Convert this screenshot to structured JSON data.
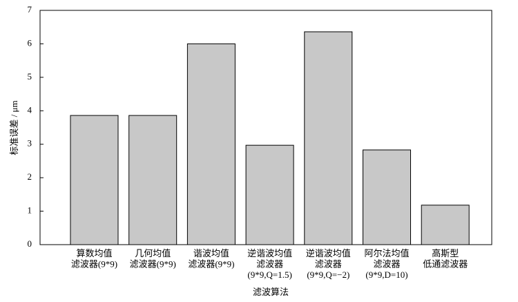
{
  "chart_data": {
    "type": "bar",
    "y_label": "标准误差 / μm",
    "x_label": "滤波算法",
    "categories": [
      [
        "算数均值",
        "滤波器(9*9)"
      ],
      [
        "几何均值",
        "滤波器(9*9)"
      ],
      [
        "谐波均值",
        "滤波器(9*9)"
      ],
      [
        "逆谐波均值",
        "滤波器",
        "(9*9,Q=1.5)"
      ],
      [
        "逆谐波均值",
        "滤波器",
        "(9*9,Q=−2)"
      ],
      [
        "阿尔法均值",
        "滤波器",
        "(9*9,D=10)"
      ],
      [
        "高斯型",
        "低通滤波器"
      ]
    ],
    "values": [
      3.86,
      3.86,
      6.0,
      2.97,
      6.36,
      2.83,
      1.18
    ],
    "color": "#c8c8c8",
    "ylim": [
      0,
      7
    ],
    "yticks": [
      0,
      1,
      2,
      3,
      4,
      5,
      6,
      7
    ]
  }
}
